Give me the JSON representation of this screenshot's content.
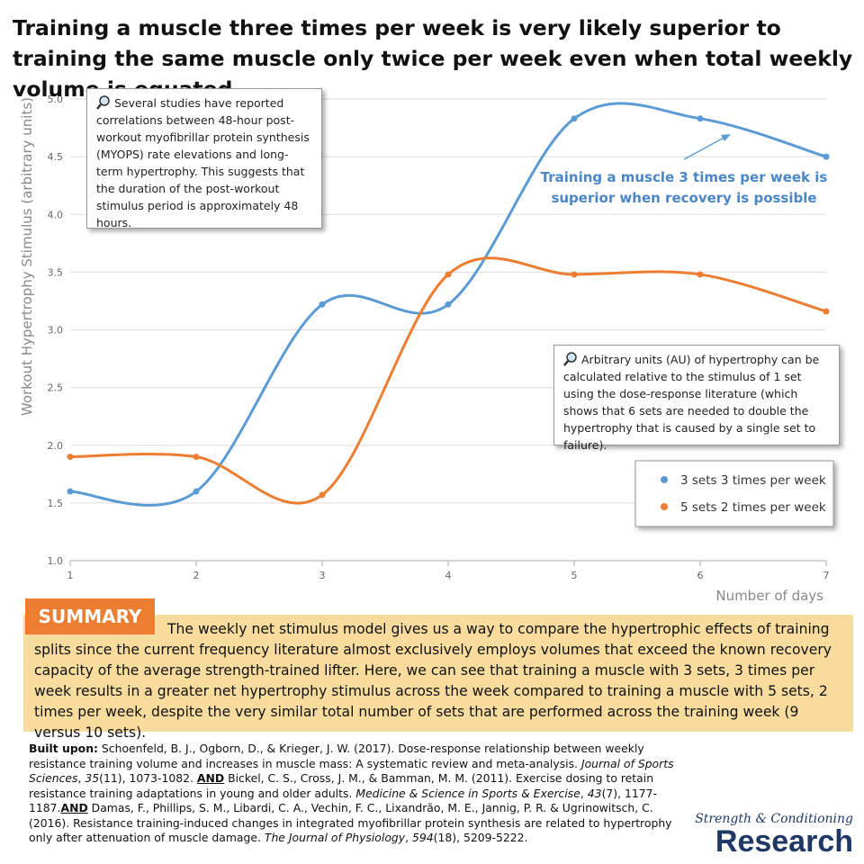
{
  "header": {
    "title": "Training a muscle three times per week is very likely superior to training the same muscle only twice per week even when total weekly volume is equated."
  },
  "chart_data": {
    "type": "line",
    "x": [
      1,
      2,
      3,
      4,
      5,
      6,
      7
    ],
    "series": [
      {
        "name": "3 sets 3 times per week",
        "color": "#5b9bd5",
        "values": [
          1.6,
          1.6,
          3.22,
          3.22,
          4.83,
          4.83,
          4.5
        ]
      },
      {
        "name": "5 sets 2 times per week",
        "color": "#ed7d31",
        "values": [
          1.9,
          1.9,
          1.57,
          3.48,
          3.48,
          3.48,
          3.16
        ]
      }
    ],
    "xlim": [
      1,
      7
    ],
    "xticks": [
      1,
      2,
      3,
      4,
      5,
      6,
      7
    ],
    "ylim": [
      1,
      5
    ],
    "yticks": [
      {
        "value": 1,
        "label": "1.0"
      },
      {
        "value": 1.5,
        "label": "1.5"
      },
      {
        "value": 2,
        "label": "2.0"
      },
      {
        "value": 2.5,
        "label": "2.5"
      },
      {
        "value": 3,
        "label": "3.0"
      },
      {
        "value": 3.5,
        "label": "3.5"
      },
      {
        "value": 4,
        "label": "4.0"
      },
      {
        "value": 4.5,
        "label": "4.5"
      },
      {
        "value": 5,
        "label": "5.0"
      }
    ],
    "xlabel": "Number of days",
    "ylabel": "Workout Hypertrophy Stimulus (arbitrary units)",
    "grid": true,
    "legend": "lower right",
    "annotations": [
      "Several studies have reported correlations between 48-hour post-workout myofibrillar protein synthesis (MYOPS) rate elevations and long-term hypertrophy. This suggests that the duration of the post-workout stimulus period is approximately 48 hours.",
      "Arbitrary units (AU) of hypertrophy can be calculated relative to the stimulus of 1 set using the dose-response literature (which shows that 6 sets are needed to double the hypertrophy that is caused by a single set to failure).",
      "Training a muscle 3 times per week is superior when recovery is possible"
    ]
  },
  "summary": {
    "label": "SUMMARY",
    "text": "The weekly net stimulus model gives us a way to compare the hypertrophic effects of training splits since the current frequency literature almost exclusively employs volumes that exceed the known recovery capacity of the average strength-trained lifter. Here, we can see that training a muscle with 3 sets, 3 times per week results in a greater net hypertrophy stimulus across the week compared to training a muscle with 5 sets, 2 times per week, despite the very similar total number of sets that are performed across the training week (9 versus 10 sets)."
  },
  "references": {
    "parts": [
      "Built upon:",
      " Schoenfeld, B. J., Ogborn, D., & Krieger, J. W. (2017). Dose-response relationship between weekly resistance training volume and increases in muscle mass: A systematic review and meta-analysis. ",
      "Journal of Sports Sciences",
      ", ",
      "35",
      "(11), 1073-1082. ",
      "AND",
      " Bickel, C. S., Cross, J. M., & Bamman, M. M. (2011). Exercise dosing to retain resistance training adaptations in young and older adults. ",
      "Medicine & Science in Sports & Exercise",
      ", ",
      "43",
      "(7), 1177-1187.",
      "AND",
      " Damas, F., Phillips, S. M., Libardi, C. A., Vechin, F. C., Lixandrão, M. E., Jannig, P. R. & Ugrinowitsch, C. (2016). Resistance training-induced changes in integrated myofibrillar protein synthesis are related to hypertrophy only after attenuation of muscle damage. ",
      "The Journal of Physiology",
      ", ",
      "594",
      "(18), 5209-5222."
    ]
  },
  "logo": {
    "line1": "Strength & Conditioning",
    "line2": "Research"
  }
}
